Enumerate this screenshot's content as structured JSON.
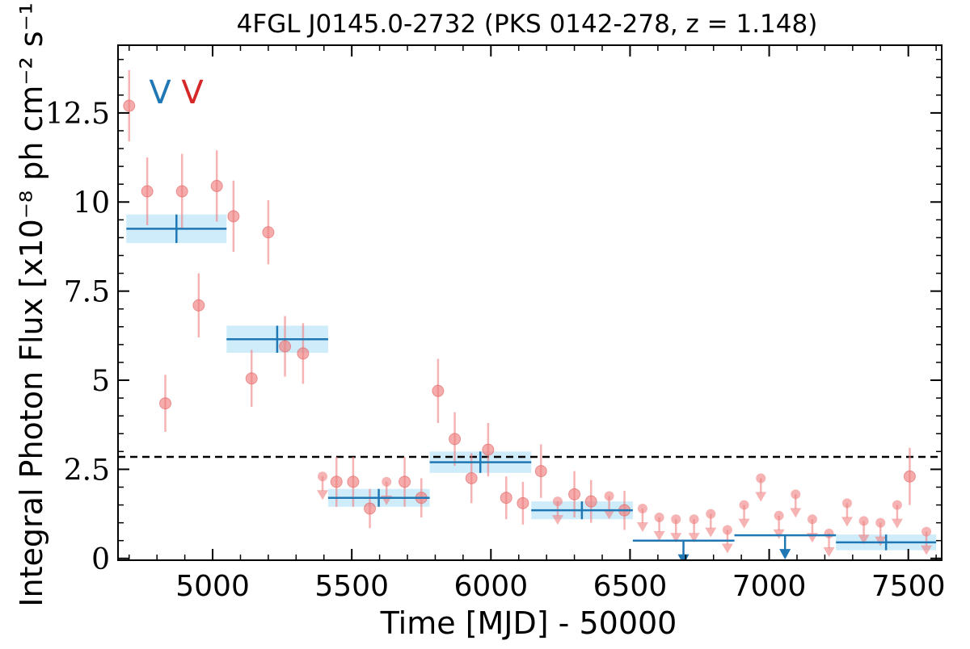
{
  "chart_data": {
    "type": "scatter",
    "title": "4FGL J0145.0-2732 (PKS 0142-278, z = 1.148)",
    "xlabel": "Time [MJD] - 50000",
    "ylabel": "Integral Photon Flux [x10⁻⁸ ph cm⁻² s⁻¹]",
    "xlim": [
      4660,
      7620
    ],
    "ylim": [
      -0.05,
      14.4
    ],
    "xticks": [
      5000,
      5500,
      6000,
      6500,
      7000,
      7500
    ],
    "xtick_labels": [
      "5000",
      "5500",
      "6000",
      "6500",
      "7000",
      "7500"
    ],
    "yticks": [
      0,
      2.5,
      5,
      7.5,
      10,
      12.5
    ],
    "ytick_labels": [
      "0",
      "2.5",
      "5",
      "7.5",
      "10",
      "12.5"
    ],
    "grid": false,
    "reference_line": {
      "y": 2.85,
      "style": "dashed",
      "color": "#000000"
    },
    "legend": {
      "position": "top-left",
      "entries": [
        {
          "label": "V",
          "color": "#1f77b4"
        },
        {
          "label": "V",
          "color": "#d62728"
        }
      ]
    },
    "colors": {
      "short_bins": "#f08080",
      "long_bins": "#1f77b4",
      "band": "#a8dcf5"
    },
    "series": [
      {
        "bin": "short",
        "points": [
          {
            "x": 4700,
            "y": 12.7,
            "yerr": 1.0
          },
          {
            "x": 4765,
            "y": 10.3,
            "yerr": 0.95
          },
          {
            "x": 4830,
            "y": 4.35,
            "yerr": 0.8
          },
          {
            "x": 4890,
            "y": 10.3,
            "yerr": 1.05
          },
          {
            "x": 4950,
            "y": 7.1,
            "yerr": 0.9
          },
          {
            "x": 5015,
            "y": 10.45,
            "yerr": 1.0
          },
          {
            "x": 5075,
            "y": 9.6,
            "yerr": 1.0
          },
          {
            "x": 5140,
            "y": 5.05,
            "yerr": 0.8
          },
          {
            "x": 5200,
            "y": 9.15,
            "yerr": 0.9
          },
          {
            "x": 5260,
            "y": 5.95,
            "yerr": 0.85
          },
          {
            "x": 5325,
            "y": 5.75,
            "yerr": 0.85
          },
          {
            "x": 5445,
            "y": 2.15,
            "yerr": 0.7
          },
          {
            "x": 5505,
            "y": 2.15,
            "yerr": 0.7
          },
          {
            "x": 5565,
            "y": 1.4,
            "yerr": 0.55
          },
          {
            "x": 5690,
            "y": 2.15,
            "yerr": 0.7
          },
          {
            "x": 5750,
            "y": 1.7,
            "yerr": 0.55
          },
          {
            "x": 5810,
            "y": 4.7,
            "yerr": 0.9
          },
          {
            "x": 5870,
            "y": 3.35,
            "yerr": 0.75
          },
          {
            "x": 5930,
            "y": 2.25,
            "yerr": 0.7
          },
          {
            "x": 5990,
            "y": 3.05,
            "yerr": 0.75
          },
          {
            "x": 6055,
            "y": 1.7,
            "yerr": 0.6
          },
          {
            "x": 6115,
            "y": 1.55,
            "yerr": 0.6
          },
          {
            "x": 6180,
            "y": 2.45,
            "yerr": 0.75
          },
          {
            "x": 6300,
            "y": 1.8,
            "yerr": 0.65
          },
          {
            "x": 6360,
            "y": 1.6,
            "yerr": 0.6
          },
          {
            "x": 6480,
            "y": 1.35,
            "yerr": 0.55
          },
          {
            "x": 7505,
            "y": 2.3,
            "yerr": 0.8
          }
        ],
        "upper_limits": [
          {
            "x": 5395,
            "y": 2.3
          },
          {
            "x": 5625,
            "y": 2.15
          },
          {
            "x": 6240,
            "y": 1.6
          },
          {
            "x": 6425,
            "y": 1.75
          },
          {
            "x": 6545,
            "y": 1.4
          },
          {
            "x": 6605,
            "y": 1.15
          },
          {
            "x": 6665,
            "y": 1.1
          },
          {
            "x": 6730,
            "y": 1.1
          },
          {
            "x": 6790,
            "y": 1.25
          },
          {
            "x": 6850,
            "y": 0.8
          },
          {
            "x": 6910,
            "y": 1.5
          },
          {
            "x": 6970,
            "y": 2.25
          },
          {
            "x": 7035,
            "y": 1.2
          },
          {
            "x": 7095,
            "y": 1.8
          },
          {
            "x": 7155,
            "y": 1.1
          },
          {
            "x": 7215,
            "y": 0.7
          },
          {
            "x": 7280,
            "y": 1.55
          },
          {
            "x": 7340,
            "y": 1.05
          },
          {
            "x": 7400,
            "y": 1.0
          },
          {
            "x": 7460,
            "y": 1.5
          },
          {
            "x": 7565,
            "y": 0.75
          }
        ]
      },
      {
        "bin": "long",
        "bins": [
          {
            "x_start": 4690,
            "x_end": 5050,
            "x": 4870,
            "y": 9.25,
            "yerr": 0.4
          },
          {
            "x_start": 5050,
            "x_end": 5415,
            "x": 5232,
            "y": 6.15,
            "yerr": 0.38
          },
          {
            "x_start": 5415,
            "x_end": 5780,
            "x": 5597,
            "y": 1.7,
            "yerr": 0.25
          },
          {
            "x_start": 5780,
            "x_end": 6145,
            "x": 5962,
            "y": 2.7,
            "yerr": 0.3
          },
          {
            "x_start": 6145,
            "x_end": 6510,
            "x": 6327,
            "y": 1.35,
            "yerr": 0.25
          },
          {
            "x_start": 7240,
            "x_end": 7600,
            "x": 7420,
            "y": 0.45,
            "yerr": 0.22
          }
        ],
        "upper_limit_bins": [
          {
            "x_start": 6510,
            "x_end": 6875,
            "x": 6692,
            "y": 0.5
          },
          {
            "x_start": 6875,
            "x_end": 7240,
            "x": 7057,
            "y": 0.65
          }
        ]
      }
    ]
  }
}
